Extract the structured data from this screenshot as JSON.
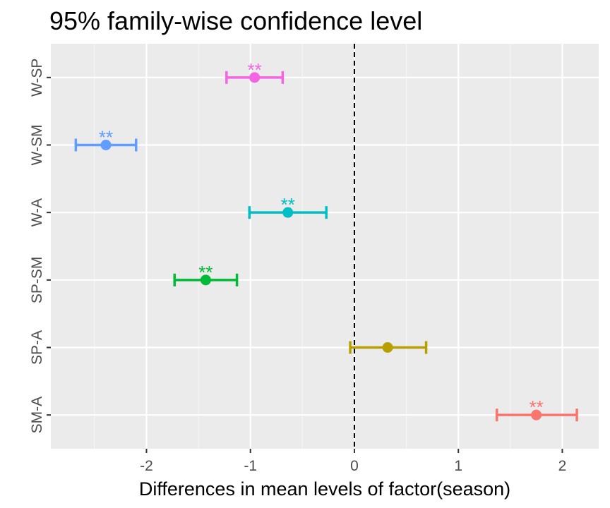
{
  "chart_data": {
    "type": "scatter",
    "title": "95% family-wise confidence level",
    "xlabel": "Differences in mean levels of factor(season)",
    "ylabel": "",
    "xlim": [
      -2.92,
      2.35
    ],
    "x_ticks": [
      -2,
      -1,
      0,
      1,
      2
    ],
    "x_tick_labels": [
      "-2",
      "-1",
      "0",
      "1",
      "2"
    ],
    "reference_line": {
      "x": 0,
      "style": "dashed",
      "color": "#000000"
    },
    "grid": true,
    "categories": [
      "W-SP",
      "W-SM",
      "W-A",
      "SP-SM",
      "SP-A",
      "SM-A"
    ],
    "series": [
      {
        "category": "W-SP",
        "estimate": -0.96,
        "lower": -1.23,
        "upper": -0.69,
        "significance": "**",
        "color": "#F564E3"
      },
      {
        "category": "W-SM",
        "estimate": -2.39,
        "lower": -2.68,
        "upper": -2.1,
        "significance": "**",
        "color": "#619CFF"
      },
      {
        "category": "W-A",
        "estimate": -0.64,
        "lower": -1.01,
        "upper": -0.27,
        "significance": "**",
        "color": "#00BFC4"
      },
      {
        "category": "SP-SM",
        "estimate": -1.43,
        "lower": -1.73,
        "upper": -1.13,
        "significance": "**",
        "color": "#00BA38"
      },
      {
        "category": "SP-A",
        "estimate": 0.32,
        "lower": -0.04,
        "upper": 0.69,
        "significance": "",
        "color": "#B79F00"
      },
      {
        "category": "SM-A",
        "estimate": 1.75,
        "lower": 1.37,
        "upper": 2.14,
        "significance": "**",
        "color": "#F8766D"
      }
    ]
  }
}
